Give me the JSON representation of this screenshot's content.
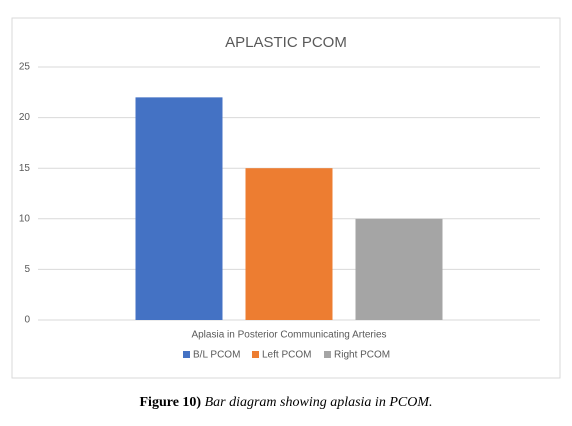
{
  "chart_data": {
    "type": "bar",
    "title": "APLASTIC PCOM",
    "categories": [
      "Aplasia in Posterior Communicating Arteries"
    ],
    "series": [
      {
        "name": "B/L PCOM",
        "color": "#4472c4",
        "values": [
          22
        ]
      },
      {
        "name": "Left PCOM",
        "color": "#ed7d31",
        "values": [
          15
        ]
      },
      {
        "name": "Right PCOM",
        "color": "#a5a5a5",
        "values": [
          10
        ]
      }
    ],
    "ylim": [
      0,
      25
    ],
    "yticks": [
      0,
      5,
      10,
      15,
      20,
      25
    ],
    "grid": true,
    "legend": "bottom"
  },
  "caption_label": "Figure 10)",
  "caption": "Bar diagram showing aplasia in PCOM."
}
